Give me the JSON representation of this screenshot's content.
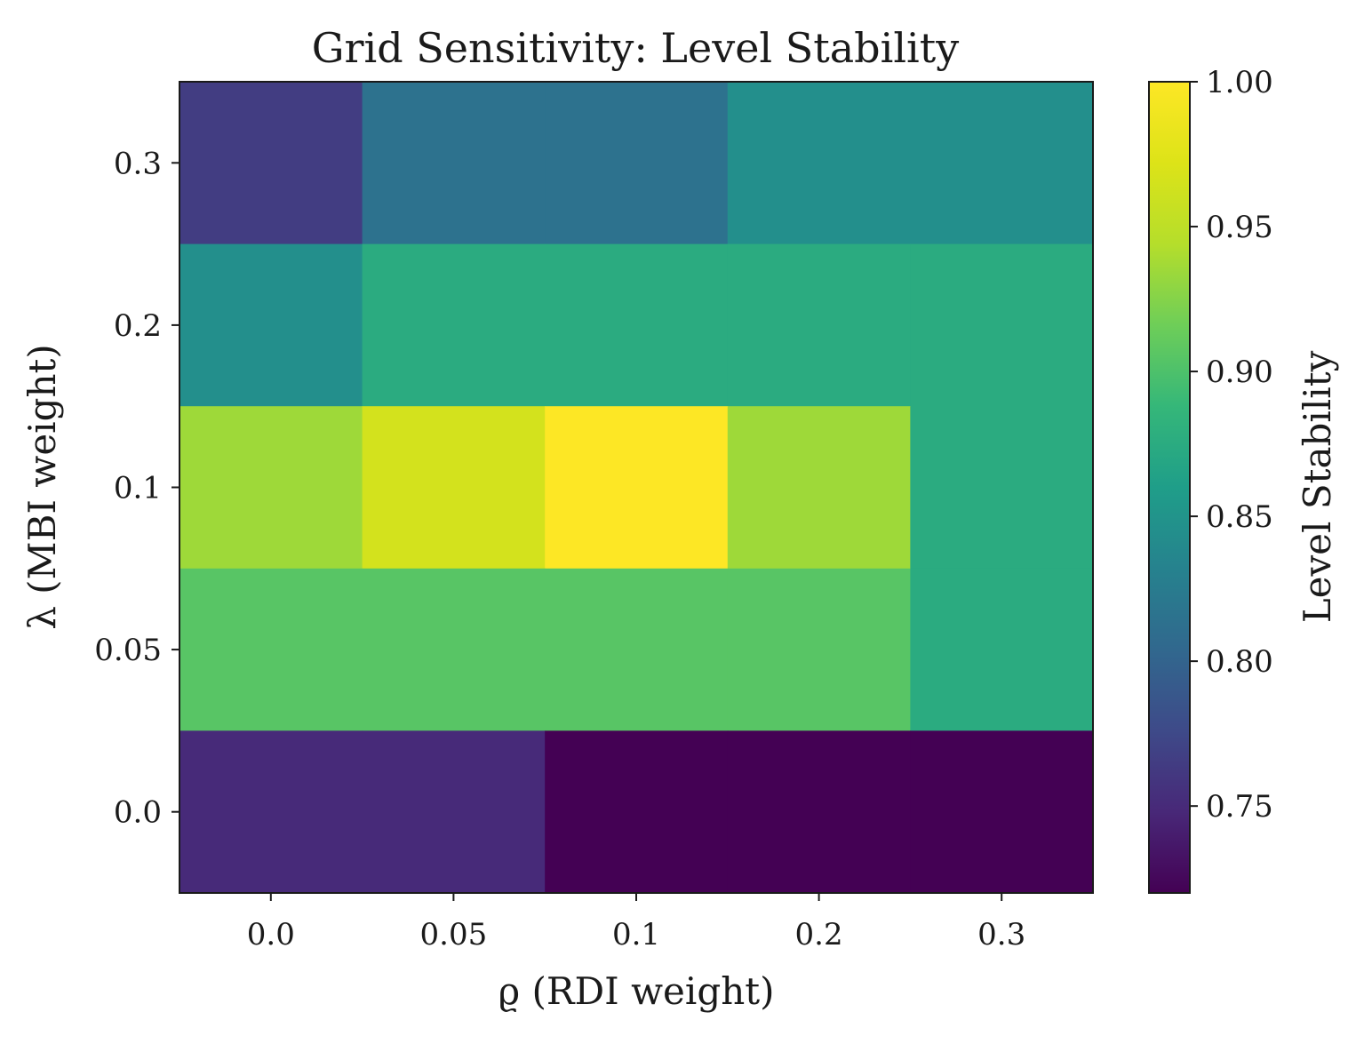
{
  "chart_data": {
    "type": "heatmap",
    "title": "Grid Sensitivity: Level Stability",
    "xlabel": "ϱ (RDI weight)",
    "ylabel": "λ (MBI weight)",
    "x_categories": [
      "0.0",
      "0.05",
      "0.1",
      "0.2",
      "0.3"
    ],
    "y_categories": [
      "0.3",
      "0.2",
      "0.1",
      "0.05",
      "0.0"
    ],
    "values": [
      [
        0.765,
        0.815,
        0.815,
        0.845,
        0.845
      ],
      [
        0.845,
        0.875,
        0.875,
        0.875,
        0.875
      ],
      [
        0.935,
        0.965,
        1.0,
        0.935,
        0.875
      ],
      [
        0.905,
        0.905,
        0.905,
        0.905,
        0.875
      ],
      [
        0.75,
        0.75,
        0.72,
        0.72,
        0.72
      ]
    ],
    "colorbar": {
      "label": "Level Stability",
      "vmin": 0.72,
      "vmax": 1.0,
      "ticks": [
        "0.75",
        "0.80",
        "0.85",
        "0.90",
        "0.95",
        "1.00"
      ],
      "colormap": "viridis"
    },
    "grid": false
  }
}
